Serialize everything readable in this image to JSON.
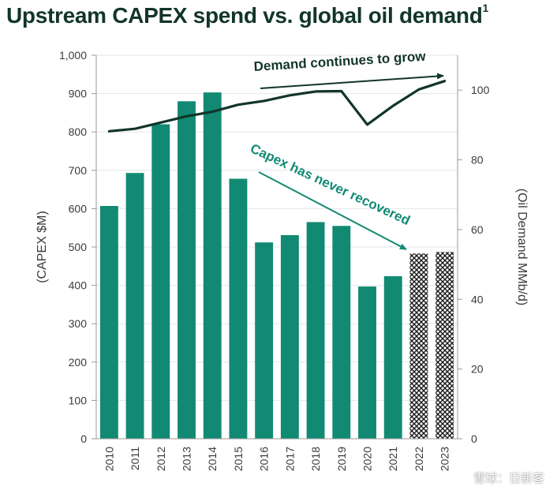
{
  "title": "Upstream CAPEX spend vs. global oil demand",
  "title_superscript": "1",
  "watermark": "雪球：日新客",
  "colors": {
    "bar": "#128a73",
    "line": "#12352a",
    "title": "#12352a",
    "axis_text": "#3b3b3b",
    "capex_annotation": "#128a73",
    "demand_annotation": "#12352a"
  },
  "chart_data": {
    "type": "bar",
    "categories": [
      "2010",
      "2011",
      "2012",
      "2013",
      "2014",
      "2015",
      "2016",
      "2017",
      "2018",
      "2019",
      "2020",
      "2021",
      "2022",
      "2023"
    ],
    "series": [
      {
        "values": [
          607,
          693,
          820,
          880,
          903,
          678,
          512,
          531,
          565,
          555,
          397,
          424,
          483,
          487
        ],
        "hatched_categories": [
          "2022",
          "2023"
        ],
        "axis": "left"
      },
      {
        "type": "line",
        "axis": "right",
        "values": [
          88.2,
          88.9,
          90.7,
          92.5,
          93.8,
          95.8,
          96.9,
          98.5,
          99.6,
          99.7,
          90.1,
          95.5,
          100.2,
          102.6
        ]
      }
    ],
    "ylabel": "(CAPEX $M)",
    "ylim": [
      0,
      1000
    ],
    "yticks": [
      "0",
      "100",
      "200",
      "300",
      "400",
      "500",
      "600",
      "700",
      "800",
      "900",
      "1,000"
    ],
    "y2label": "(Oil Demand MMb/d)",
    "y2lim": [
      0,
      110
    ],
    "y2ticks": [
      "0",
      "20",
      "40",
      "60",
      "80",
      "100"
    ],
    "annotations": [
      {
        "text": "Demand continues to grow"
      },
      {
        "text": "Capex has never recovered"
      }
    ],
    "grid": true
  }
}
